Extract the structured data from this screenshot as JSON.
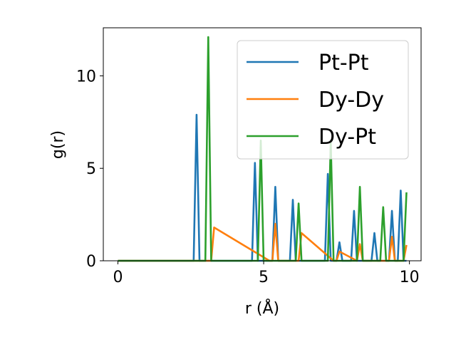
{
  "chart_data": {
    "type": "line",
    "title": "",
    "xlabel": "r (Å)",
    "ylabel": "g(r)",
    "xlim": [
      -0.5,
      10.4
    ],
    "ylim": [
      0,
      12.6
    ],
    "xticks": [
      0,
      5,
      10
    ],
    "yticks": [
      0,
      5,
      10
    ],
    "grid": false,
    "legend_position": "top-right",
    "series": [
      {
        "name": "Pt-Pt",
        "color": "#1f77b4",
        "x": [
          0,
          2.6,
          2.7,
          2.8,
          4.5,
          4.6,
          4.7,
          4.8,
          5.3,
          5.4,
          5.5,
          5.9,
          6.0,
          6.1,
          7.1,
          7.2,
          7.3,
          7.5,
          7.6,
          7.7,
          8.0,
          8.1,
          8.2,
          8.7,
          8.8,
          8.9,
          9.3,
          9.4,
          9.5,
          9.6,
          9.7,
          9.8,
          9.9
        ],
        "y": [
          0,
          0,
          7.9,
          0,
          0,
          0,
          5.3,
          0,
          0,
          4.0,
          0,
          0,
          3.3,
          0,
          0,
          4.7,
          0,
          0,
          1.0,
          0,
          0,
          2.7,
          0,
          0,
          1.5,
          0,
          0,
          2.7,
          0,
          0,
          3.8,
          0,
          0
        ]
      },
      {
        "name": "Dy-Dy",
        "color": "#ff7f0e",
        "x": [
          0,
          3.1,
          3.2,
          3.3,
          5.2,
          5.3,
          5.4,
          5.5,
          6.1,
          6.2,
          6.3,
          7.4,
          7.5,
          7.6,
          8.2,
          8.3,
          8.4,
          9.2,
          9.3,
          9.4,
          9.5,
          9.8,
          9.9
        ],
        "y": [
          0,
          0,
          0,
          1.8,
          0,
          0,
          2.0,
          0,
          0,
          0,
          1.5,
          0,
          0,
          0.5,
          0,
          0.9,
          0,
          0,
          0,
          1.3,
          0,
          0,
          0.85
        ]
      },
      {
        "name": "Dy-Pt",
        "color": "#2ca02c",
        "x": [
          0,
          3.0,
          3.1,
          3.2,
          4.8,
          4.9,
          5.0,
          6.1,
          6.2,
          6.3,
          7.2,
          7.3,
          7.4,
          8.2,
          8.3,
          8.4,
          9.0,
          9.1,
          9.2,
          9.8,
          9.9
        ],
        "y": [
          0,
          0,
          12.1,
          0,
          0,
          6.5,
          0,
          0,
          3.1,
          0,
          0,
          6.5,
          0,
          0,
          4.0,
          0,
          0,
          2.9,
          0,
          0,
          3.7
        ]
      }
    ]
  }
}
